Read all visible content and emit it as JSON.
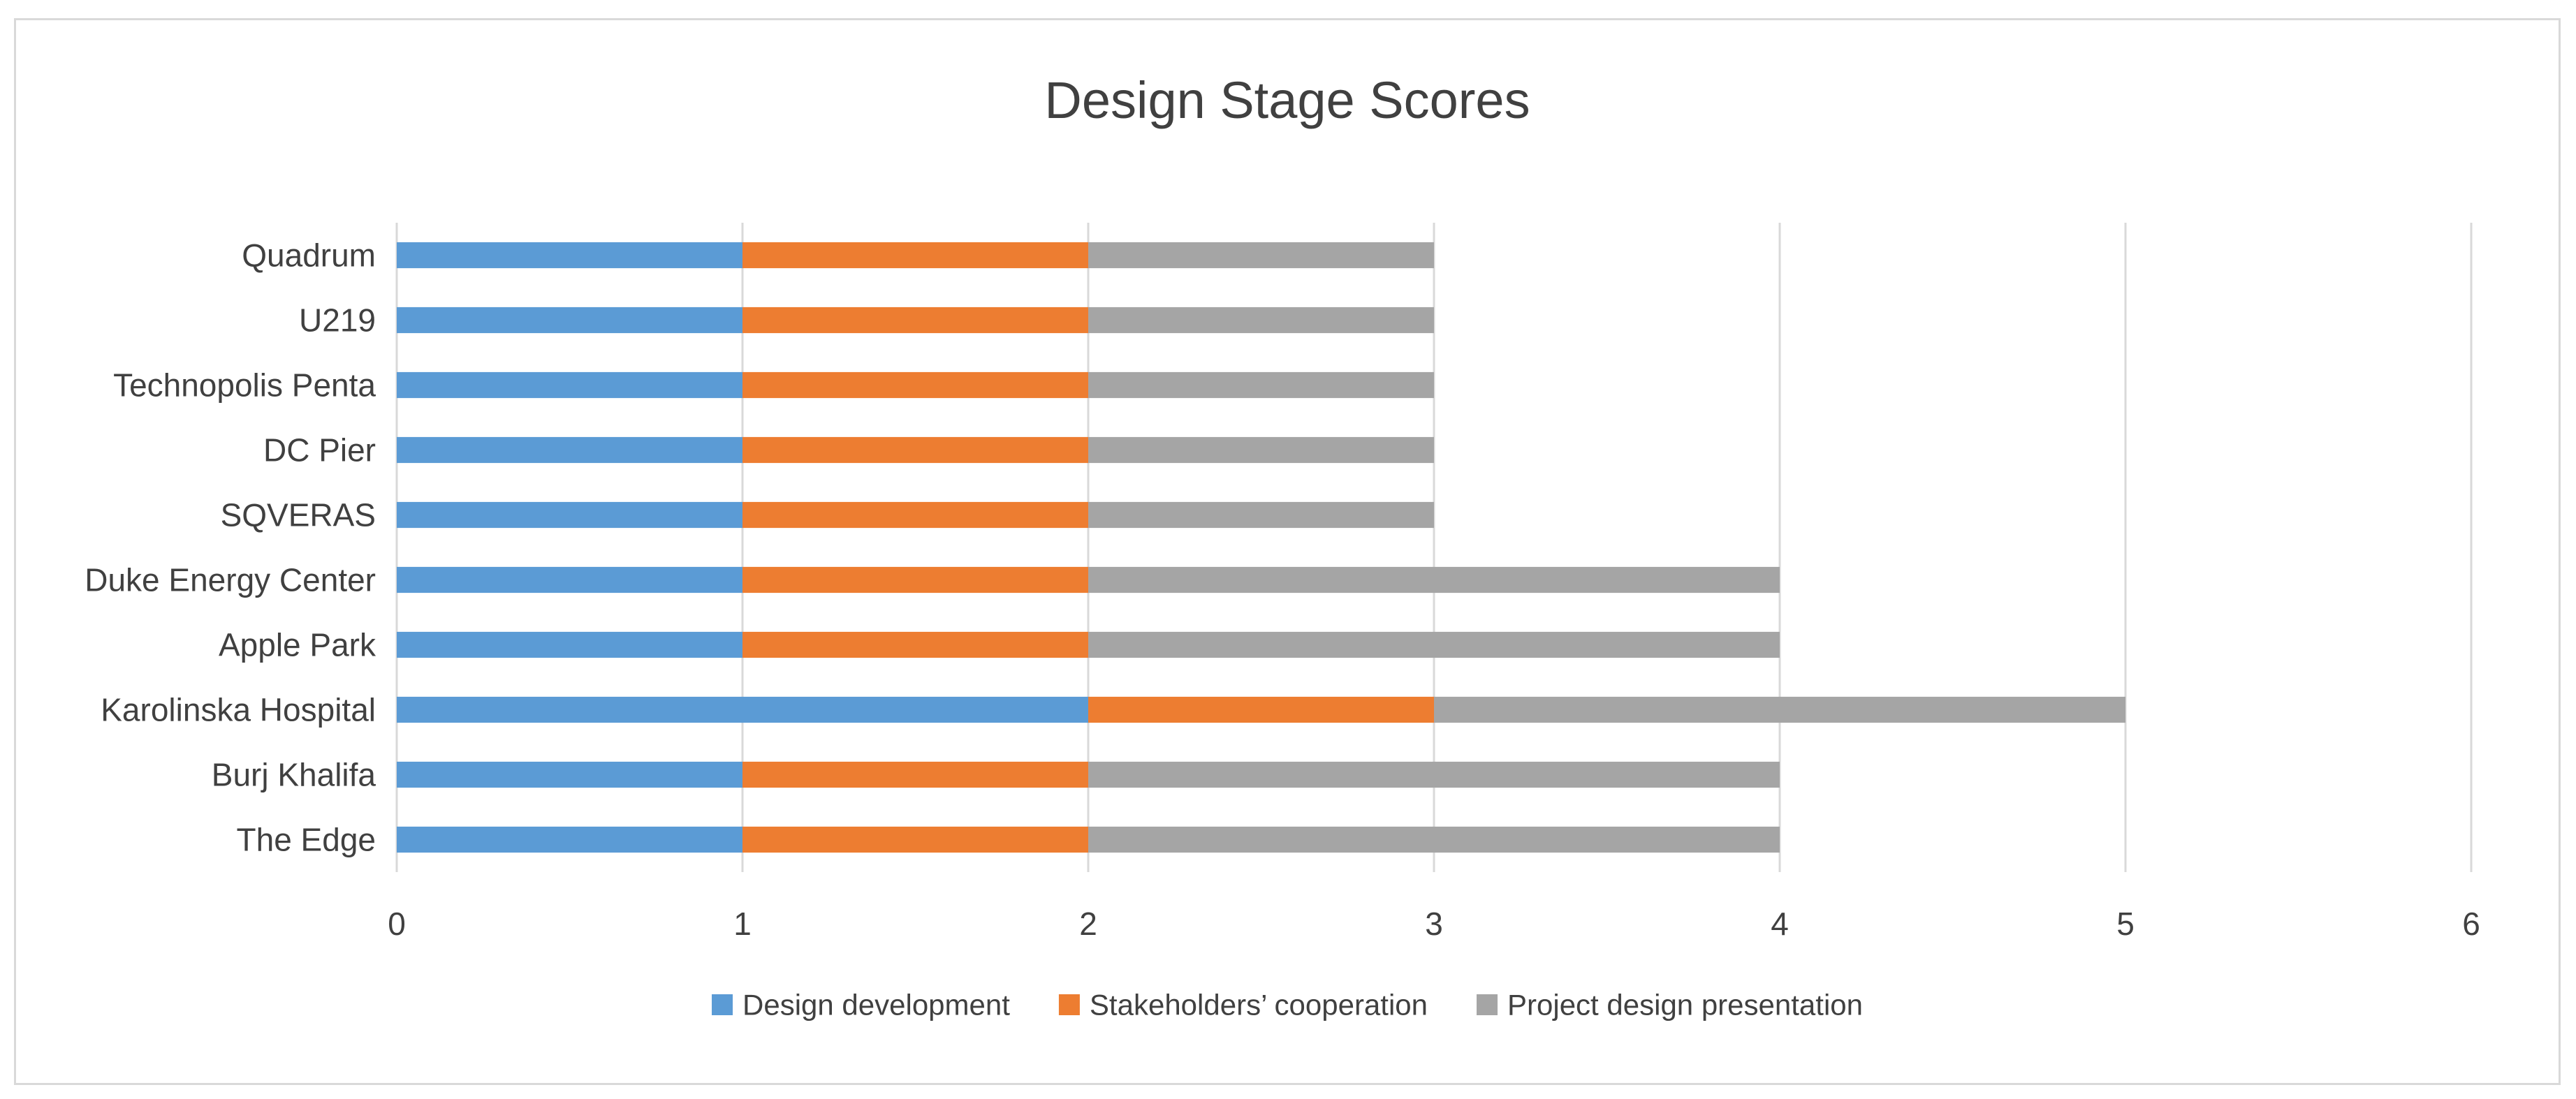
{
  "chart_data": {
    "type": "bar",
    "orientation": "horizontal",
    "stacked": true,
    "title": "Design Stage Scores",
    "xlabel": "",
    "ylabel": "",
    "xlim": [
      0,
      6
    ],
    "xticks": [
      0,
      1,
      2,
      3,
      4,
      5,
      6
    ],
    "grid": true,
    "legend_position": "bottom",
    "categories": [
      "The Edge",
      "Burj Khalifa",
      "Karolinska Hospital",
      "Apple Park",
      "Duke Energy Center",
      "SQVERAS",
      "DC Pier",
      "Technopolis Penta",
      "U219",
      "Quadrum"
    ],
    "series": [
      {
        "name": "Design development",
        "color": "#5b9bd5",
        "values": [
          1,
          1,
          2,
          1,
          1,
          1,
          1,
          1,
          1,
          1
        ]
      },
      {
        "name": "Stakeholders’ cooperation",
        "color": "#ed7d31",
        "values": [
          1,
          1,
          1,
          1,
          1,
          1,
          1,
          1,
          1,
          1
        ]
      },
      {
        "name": "Project design presentation",
        "color": "#a5a5a5",
        "values": [
          2,
          2,
          2,
          2,
          2,
          1,
          1,
          1,
          1,
          1
        ]
      }
    ]
  }
}
